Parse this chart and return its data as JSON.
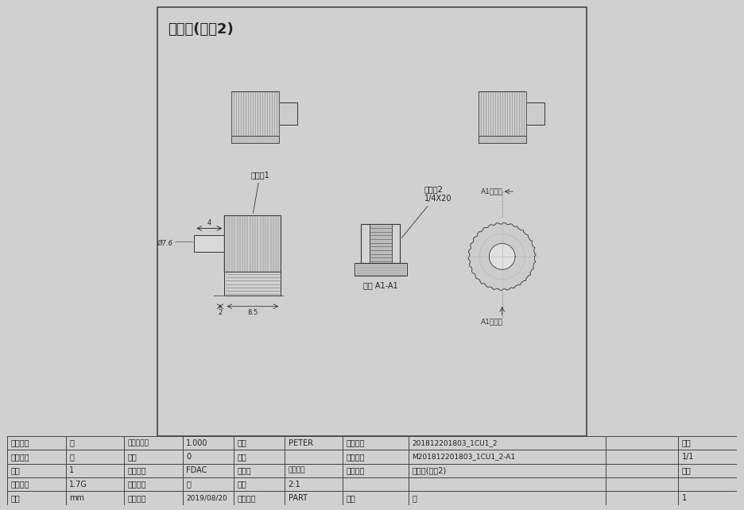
{
  "title": "鋁螺母(加工2)",
  "bg_color": "#e8e8e8",
  "drawing_bg": "#f0f0f0",
  "line_color": "#555555",
  "dark_line": "#333333",
  "table_rows": [
    [
      "零件材質",
      "鋁",
      "模具收縮率",
      "1.000",
      "繪圖",
      "PETER",
      "零件編號",
      "201812201803_1CU1_2",
      "頁次"
    ],
    [
      "表面處理",
      "無",
      "模穴",
      "0",
      "審核",
      "",
      "模具編號",
      "M201812201803_1CU1_2-A1",
      "1/1"
    ],
    [
      "數量",
      "1",
      "模仁材質",
      "FDAC",
      "投影法",
      "第三角法",
      "零件名稱",
      "鋁螺母(加工2)",
      "版次"
    ],
    [
      "零件重量",
      "1.7G",
      "製造單位",
      "無",
      "比例",
      "2:1",
      "",
      "",
      ""
    ],
    [
      "單位",
      "mm",
      "出圖日期",
      "2019/08/20",
      "圖面類型",
      "PART",
      "規格",
      "無",
      "1"
    ]
  ],
  "annotations": {
    "label1": "加工處1",
    "label2": "加工處2\n1/4X20",
    "cross_section": "截面 A1-A1",
    "view1": "A1剖視圖",
    "view2": "A1剖視圖",
    "dim_4": "4",
    "dim_2": "2",
    "dim_85": "8.5",
    "dim_dia": "Ø7.6"
  }
}
